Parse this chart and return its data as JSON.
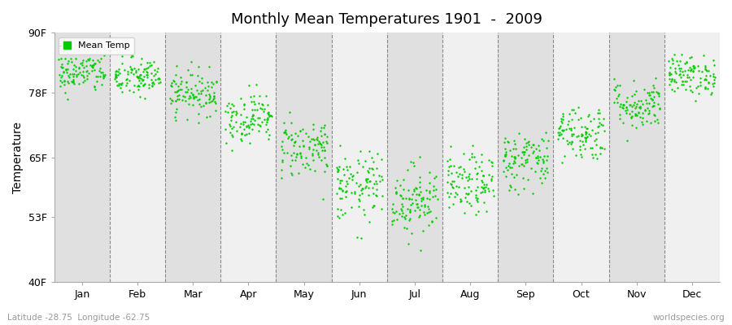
{
  "title": "Monthly Mean Temperatures 1901  -  2009",
  "ylabel": "Temperature",
  "ytick_labels": [
    "40F",
    "53F",
    "65F",
    "78F",
    "90F"
  ],
  "ytick_values": [
    40,
    53,
    65,
    78,
    90
  ],
  "ylim": [
    40,
    90
  ],
  "xlim": [
    0,
    12
  ],
  "xtick_labels": [
    "Jan",
    "Feb",
    "Mar",
    "Apr",
    "May",
    "Jun",
    "Jul",
    "Aug",
    "Sep",
    "Oct",
    "Nov",
    "Dec"
  ],
  "xtick_positions": [
    0.5,
    1.5,
    2.5,
    3.5,
    4.5,
    5.5,
    6.5,
    7.5,
    8.5,
    9.5,
    10.5,
    11.5
  ],
  "vline_positions": [
    1,
    2,
    3,
    4,
    5,
    6,
    7,
    8,
    9,
    10,
    11
  ],
  "dot_color": "#00cc00",
  "dot_size": 3,
  "legend_label": "Mean Temp",
  "bg_light": "#f0f0f0",
  "bg_dark": "#e0e0e0",
  "fig_background_color": "#ffffff",
  "subtitle_left": "Latitude -28.75  Longitude -62.75",
  "subtitle_right": "worldspecies.org",
  "monthly_means": [
    82.0,
    81.0,
    78.0,
    73.0,
    67.0,
    59.0,
    56.5,
    59.5,
    64.5,
    70.0,
    75.5,
    81.5
  ],
  "monthly_stds": [
    2.0,
    2.0,
    2.2,
    2.5,
    3.0,
    3.5,
    3.5,
    3.0,
    3.0,
    2.8,
    2.5,
    2.0
  ],
  "n_years": 109,
  "random_seed": 42
}
